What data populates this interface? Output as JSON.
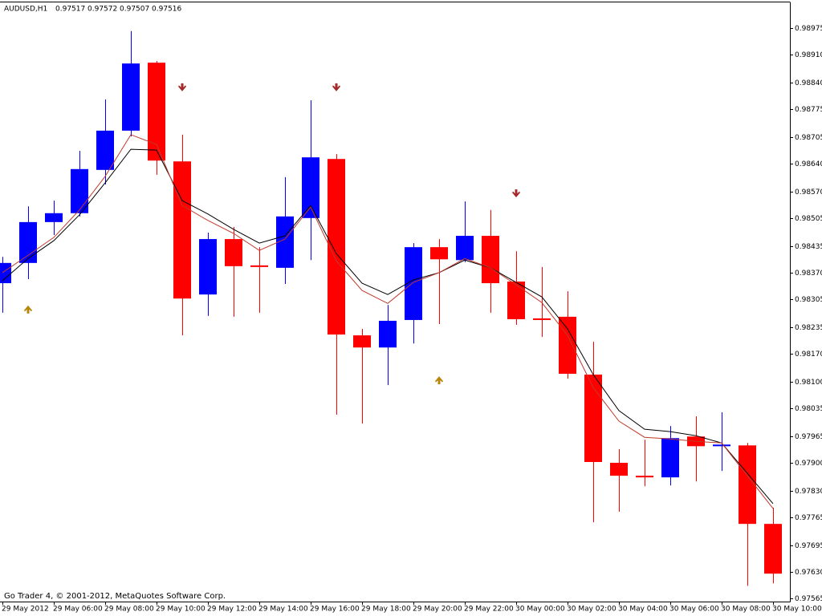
{
  "chart_data": {
    "type": "candlestick",
    "symbol": "AUDUSD,H1",
    "quote": [
      0.97517,
      0.97572,
      0.97507,
      0.97516
    ],
    "copyright": "Go Trader 4, © 2001-2012, MetaQuotes Software Corp.",
    "categories": [
      "29 May 2012",
      null,
      "29 May 06:00",
      null,
      "29 May 08:00",
      null,
      "29 May 10:00",
      null,
      "29 May 12:00",
      null,
      "29 May 14:00",
      null,
      "29 May 16:00",
      null,
      "29 May 18:00",
      null,
      "29 May 20:00",
      null,
      "29 May 22:00",
      null,
      "30 May 00:00",
      null,
      "30 May 02:00",
      null,
      "30 May 04:00",
      null,
      "30 May 06:00",
      null,
      "30 May 08:00",
      null,
      "30 May 10:00"
    ],
    "open": [
      0.98344,
      0.98394,
      0.98495,
      0.98517,
      0.98624,
      0.98721,
      0.98889,
      0.98645,
      0.98316,
      0.98453,
      0.98388,
      0.98382,
      0.98505,
      0.98651,
      0.98215,
      0.98185,
      0.98253,
      0.98433,
      0.98401,
      0.98461,
      0.98348,
      0.98257,
      0.98261,
      0.98118,
      0.979,
      0.97868,
      0.97864,
      0.97965,
      0.97941,
      0.97943,
      0.97749
    ],
    "high": [
      0.98409,
      0.98534,
      0.98548,
      0.98671,
      0.98798,
      0.98967,
      0.98893,
      0.98711,
      0.98469,
      0.98483,
      0.98433,
      0.98606,
      0.98796,
      0.98663,
      0.98231,
      0.9829,
      0.98443,
      0.98453,
      0.98546,
      0.98525,
      0.98423,
      0.98384,
      0.98324,
      0.98199,
      0.97934,
      0.97957,
      0.97991,
      0.98015,
      0.98025,
      0.97949,
      0.97789
    ],
    "low": [
      0.98271,
      0.98354,
      0.98463,
      0.98509,
      0.98588,
      0.98707,
      0.98612,
      0.98215,
      0.98263,
      0.98261,
      0.98271,
      0.98342,
      0.98401,
      0.98019,
      0.97997,
      0.98092,
      0.98195,
      0.98243,
      0.98396,
      0.98271,
      0.98241,
      0.98211,
      0.98108,
      0.97753,
      0.97779,
      0.97842,
      0.97844,
      0.97854,
      0.9788,
      0.97596,
      0.97602
    ],
    "close": [
      0.98394,
      0.98495,
      0.98517,
      0.98626,
      0.98721,
      0.98887,
      0.98647,
      0.98306,
      0.98453,
      0.98386,
      0.98384,
      0.98509,
      0.98655,
      0.98217,
      0.98185,
      0.98251,
      0.98433,
      0.98403,
      0.98461,
      0.98344,
      0.98255,
      0.98253,
      0.9812,
      0.97902,
      0.97868,
      0.97864,
      0.97961,
      0.97941,
      0.97945,
      0.97749,
      0.97626
    ],
    "up_color": "#0000ff",
    "down_color": "#ff0000",
    "lines": [
      {
        "color": "#000000",
        "values": [
          0.9835,
          0.98405,
          0.98449,
          0.98513,
          0.98592,
          0.98675,
          0.98673,
          0.98548,
          0.98515,
          0.98477,
          0.98443,
          0.98461,
          0.98536,
          0.98417,
          0.98344,
          0.98316,
          0.98352,
          0.9837,
          0.98401,
          0.98382,
          0.98346,
          0.9831,
          0.98231,
          0.98118,
          0.98029,
          0.97983,
          0.97977,
          0.97967,
          0.97949,
          0.97874,
          0.97799
        ]
      },
      {
        "color": "#c0392b",
        "values": [
          0.9837,
          0.98413,
          0.98457,
          0.98525,
          0.98608,
          0.98711,
          0.98687,
          0.98536,
          0.98499,
          0.98467,
          0.98425,
          0.98453,
          0.98532,
          0.98399,
          0.98326,
          0.98294,
          0.98346,
          0.9837,
          0.98405,
          0.98382,
          0.9834,
          0.98296,
          0.98215,
          0.98086,
          0.98003,
          0.97963,
          0.97959,
          0.97953,
          0.97949,
          0.97868,
          0.97787
        ]
      }
    ],
    "up_arrows": {
      "color": "#b8860b",
      "values": [
        null,
        0.98279,
        null,
        null,
        null,
        null,
        null,
        null,
        null,
        null,
        null,
        null,
        null,
        null,
        null,
        null,
        null,
        0.98104,
        null,
        null,
        null,
        null,
        null,
        null,
        null,
        null,
        null,
        null,
        null,
        null,
        null
      ]
    },
    "down_arrows": {
      "color": "#a52a2a",
      "values": [
        null,
        null,
        null,
        null,
        null,
        null,
        null,
        0.98828,
        null,
        null,
        null,
        null,
        null,
        0.98828,
        null,
        null,
        null,
        null,
        null,
        null,
        0.98566,
        null,
        null,
        null,
        null,
        null,
        null,
        null,
        null,
        null,
        null
      ]
    },
    "ylim": [
      0.97557,
      0.99038
    ],
    "yticks": [
      0.98975,
      {
        "value": 0.9891,
        "label": "0.98910"
      },
      {
        "value": 0.9884,
        "label": "0.98840"
      },
      0.98775,
      0.98705,
      {
        "value": 0.9864,
        "label": "0.98640"
      },
      {
        "value": 0.9857,
        "label": "0.98570"
      },
      0.98505,
      0.98435,
      {
        "value": 0.9837,
        "label": "0.98370"
      },
      0.98305,
      0.98235,
      {
        "value": 0.9817,
        "label": "0.98170"
      },
      {
        "value": 0.981,
        "label": "0.98100"
      },
      0.98035,
      0.97965,
      {
        "value": 0.979,
        "label": "0.97900"
      },
      {
        "value": 0.9783,
        "label": "0.97830"
      },
      0.97765,
      0.97695,
      {
        "value": 0.9763,
        "label": "0.97630"
      },
      0.97565
    ]
  }
}
